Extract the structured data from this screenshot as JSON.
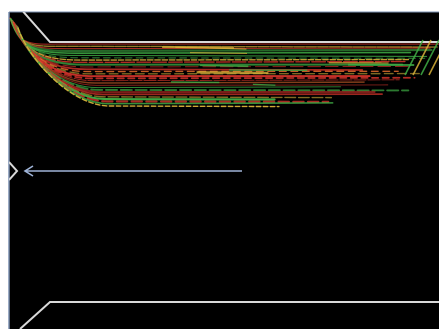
{
  "image": {
    "kind": "micrograph",
    "colors": {
      "background": "#000000",
      "frame": "#7a8fb0",
      "outline": "#d9d9d9",
      "arrow": "#9fb4d8",
      "trace_red": "#d0332a",
      "trace_orange": "#e06a2c",
      "trace_green": "#3fae45",
      "trace_yellow": "#d8b23a"
    }
  }
}
